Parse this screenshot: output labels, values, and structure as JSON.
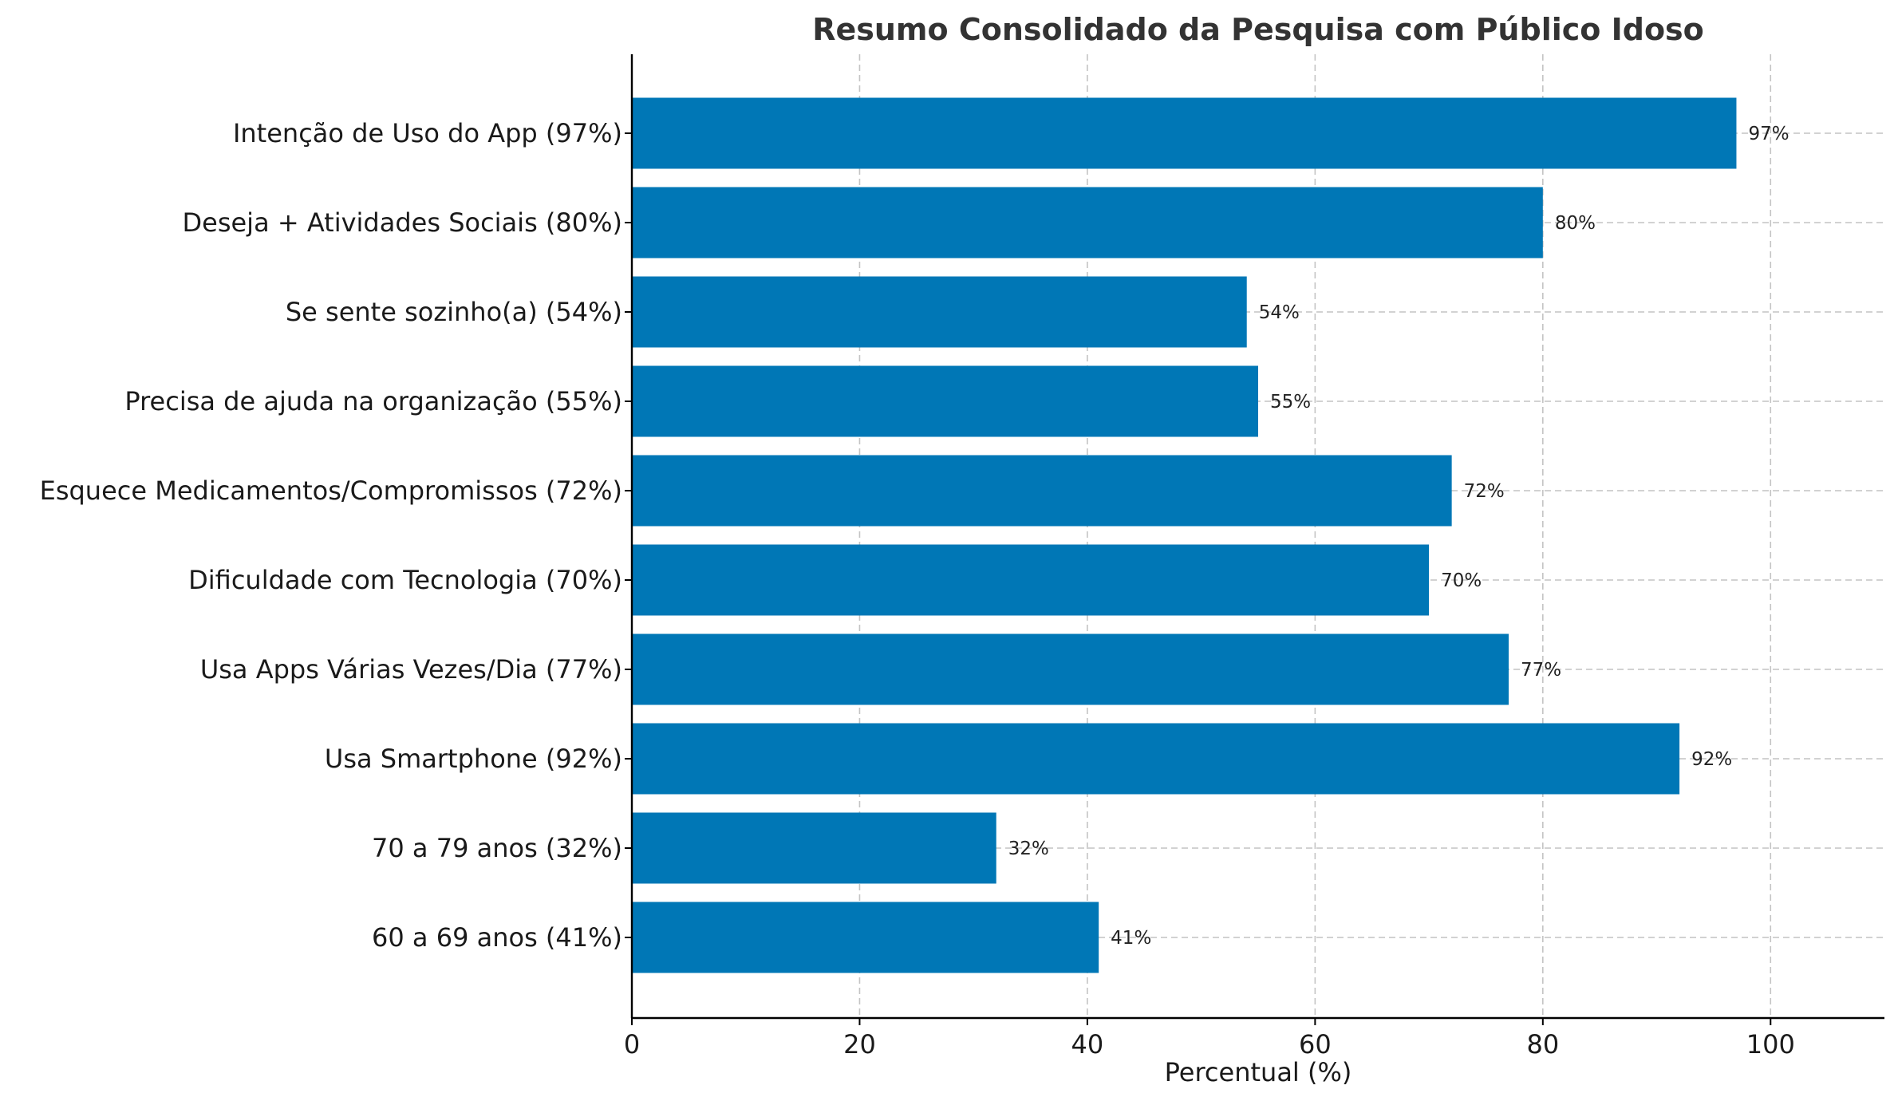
{
  "chart_data": {
    "type": "bar",
    "orientation": "horizontal",
    "title": "Resumo Consolidado da Pesquisa com Público Idoso",
    "xlabel": "Percentual (%)",
    "ylabel": "",
    "xlim": [
      0,
      110
    ],
    "xticks": [
      "0",
      "20",
      "40",
      "60",
      "80",
      "100"
    ],
    "xtick_values": [
      0,
      20,
      40,
      60,
      80,
      100
    ],
    "grid": true,
    "bar_color": "#0077b6",
    "categories": [
      "Intenção de Uso do App (97%)",
      "Deseja + Atividades Sociais (80%)",
      "Se sente sozinho(a) (54%)",
      "Precisa de ajuda na organização (55%)",
      "Esquece Medicamentos/Compromissos (72%)",
      "Dificuldade com Tecnologia (70%)",
      "Usa Apps Várias Vezes/Dia (77%)",
      "Usa Smartphone (92%)",
      "70 a 79 anos (32%)",
      "60 a 69 anos (41%)"
    ],
    "values": [
      97,
      80,
      54,
      55,
      72,
      70,
      77,
      92,
      32,
      41
    ],
    "data_labels": [
      "97%",
      "80%",
      "54%",
      "55%",
      "72%",
      "70%",
      "77%",
      "92%",
      "32%",
      "41%"
    ]
  }
}
